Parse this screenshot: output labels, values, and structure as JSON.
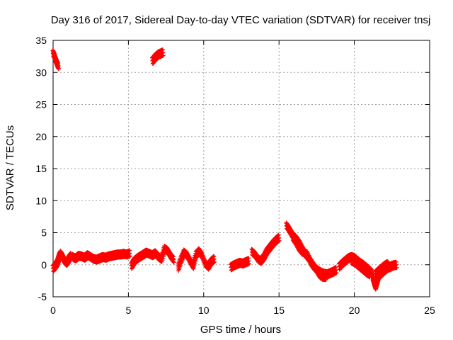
{
  "chart_data": {
    "type": "scatter",
    "title": "Day 316 of 2017, Sidereal Day-to-day VTEC variation (SDTVAR) for receiver tnsj",
    "xlabel": "GPS time / hours",
    "ylabel": "SDTVAR / TECUs",
    "xlim": [
      0,
      25
    ],
    "ylim": [
      -5,
      35
    ],
    "xticks": [
      0,
      5,
      10,
      15,
      20,
      25
    ],
    "yticks": [
      -5,
      0,
      5,
      10,
      15,
      20,
      25,
      30,
      35
    ],
    "grid": true,
    "marker": "+",
    "color": "#ff0000",
    "series": [
      {
        "name": "SDTVAR",
        "segments": [
          {
            "x": [
              0.0,
              0.05,
              0.1,
              0.15,
              0.2,
              0.25,
              0.3,
              0.35
            ],
            "y": [
              33.0,
              32.8,
              32.5,
              32.1,
              31.8,
              31.5,
              31.2,
              31.0
            ]
          },
          {
            "x": [
              6.6,
              6.7,
              6.8,
              6.9,
              7.0,
              7.1,
              7.2,
              7.3
            ],
            "y": [
              31.8,
              32.1,
              32.4,
              32.6,
              32.8,
              32.9,
              33.0,
              33.1
            ]
          },
          {
            "x": [
              0.0,
              0.1,
              0.2,
              0.3,
              0.4,
              0.5,
              0.6,
              0.7,
              0.8,
              0.9,
              1.0,
              1.1,
              1.2
            ],
            "y": [
              -0.6,
              -0.3,
              0.0,
              0.4,
              1.2,
              1.7,
              1.4,
              0.9,
              0.5,
              0.3,
              0.7,
              1.1,
              1.4
            ]
          },
          {
            "x": [
              1.3,
              1.5,
              1.7,
              1.9,
              2.1,
              2.3,
              2.5,
              2.7,
              2.9,
              3.1,
              3.3,
              3.5,
              3.7,
              3.9,
              4.1,
              4.3,
              4.5,
              4.7,
              4.9,
              5.1
            ],
            "y": [
              1.2,
              1.0,
              1.4,
              1.3,
              1.1,
              1.5,
              1.2,
              0.9,
              0.8,
              1.0,
              1.2,
              1.1,
              1.3,
              1.4,
              1.5,
              1.6,
              1.6,
              1.7,
              1.6,
              1.8
            ]
          },
          {
            "x": [
              5.2,
              5.4,
              5.6,
              5.8,
              6.0,
              6.2,
              6.4,
              6.6,
              6.8,
              7.0,
              7.2,
              7.4,
              7.6,
              7.8,
              8.0
            ],
            "y": [
              -0.2,
              0.6,
              1.0,
              1.3,
              1.6,
              1.9,
              1.7,
              1.5,
              1.8,
              1.2,
              0.9,
              2.5,
              2.2,
              1.4,
              0.8
            ]
          },
          {
            "x": [
              8.3,
              8.5,
              8.7,
              8.9,
              9.1,
              9.3,
              9.5,
              9.7,
              9.9,
              10.1,
              10.3,
              10.5,
              10.7
            ],
            "y": [
              -0.5,
              0.8,
              1.9,
              1.5,
              0.6,
              -0.2,
              1.6,
              2.1,
              1.4,
              0.2,
              -0.3,
              0.5,
              0.9
            ]
          },
          {
            "x": [
              11.8,
              12.0,
              12.2,
              12.4,
              12.6,
              12.8,
              13.0
            ],
            "y": [
              -0.4,
              -0.1,
              0.1,
              0.3,
              0.2,
              0.4,
              0.6
            ]
          },
          {
            "x": [
              13.2,
              13.4,
              13.6,
              13.8,
              14.0,
              14.2,
              14.4,
              14.6,
              14.8,
              15.0
            ],
            "y": [
              2.0,
              1.6,
              0.9,
              0.6,
              1.2,
              2.1,
              2.7,
              3.3,
              3.8,
              4.2
            ]
          },
          {
            "x": [
              15.5,
              15.6,
              15.7,
              15.8,
              15.9,
              16.0,
              16.2,
              16.4,
              16.6,
              16.8,
              17.0,
              17.2,
              17.4,
              17.6,
              17.8,
              18.0,
              18.2,
              18.4,
              18.6,
              18.8
            ],
            "y": [
              6.1,
              5.8,
              5.4,
              5.0,
              4.6,
              4.4,
              3.9,
              3.2,
              2.3,
              1.5,
              0.9,
              0.2,
              -0.5,
              -0.9,
              -1.2,
              -1.4,
              -1.5,
              -1.3,
              -1.1,
              -0.8
            ]
          },
          {
            "x": [
              15.9,
              16.1,
              16.3,
              16.5,
              16.7,
              16.9,
              17.1,
              17.3,
              17.5,
              17.7,
              17.9,
              18.1
            ],
            "y": [
              4.3,
              3.6,
              2.7,
              2.1,
              1.8,
              1.6,
              0.4,
              -0.3,
              -0.8,
              -1.6,
              -1.9,
              -1.9
            ]
          },
          {
            "x": [
              19.0,
              19.2,
              19.4,
              19.6,
              19.8,
              20.0,
              20.2,
              20.4,
              20.6,
              20.8,
              21.0,
              21.2
            ],
            "y": [
              -0.3,
              0.2,
              0.6,
              1.0,
              1.2,
              1.1,
              0.7,
              0.3,
              0.0,
              -0.4,
              -0.8,
              -1.3
            ]
          },
          {
            "x": [
              19.8,
              20.0,
              20.2,
              20.4,
              20.6,
              20.8,
              21.0
            ],
            "y": [
              0.6,
              0.4,
              0.0,
              -0.4,
              -0.8,
              -1.2,
              -1.5
            ]
          },
          {
            "x": [
              21.2,
              21.3,
              21.4,
              21.5,
              21.6,
              21.8,
              22.0,
              22.2,
              22.4,
              22.6,
              22.8
            ],
            "y": [
              -1.9,
              -2.7,
              -3.4,
              -2.6,
              -1.8,
              -1.3,
              -0.9,
              -0.5,
              -0.3,
              -0.1,
              0.0
            ]
          },
          {
            "x": [
              21.4,
              21.6,
              21.8,
              22.0,
              22.2,
              22.4
            ],
            "y": [
              -1.5,
              -1.0,
              -0.6,
              -0.2,
              0.1,
              -0.4
            ]
          }
        ]
      }
    ]
  }
}
